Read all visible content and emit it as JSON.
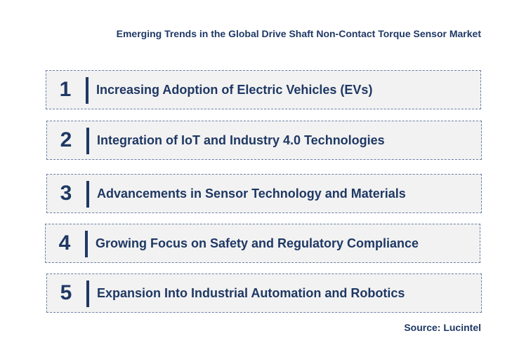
{
  "title": "Emerging Trends in the Global Drive Shaft Non-Contact Torque Sensor Market",
  "trends": [
    {
      "number": "1",
      "label": "Increasing Adoption of Electric Vehicles (EVs)"
    },
    {
      "number": "2",
      "label": "Integration of IoT and Industry 4.0 Technologies"
    },
    {
      "number": "3",
      "label": "Advancements in Sensor Technology and Materials"
    },
    {
      "number": "4",
      "label": "Growing Focus on Safety and Regulatory Compliance"
    },
    {
      "number": "5",
      "label": "Expansion Into Industrial Automation and Robotics"
    }
  ],
  "source": "Source: Lucintel",
  "colors": {
    "text": "#1f3864",
    "box_background": "#f2f2f2",
    "box_border": "#6b7fa6"
  }
}
